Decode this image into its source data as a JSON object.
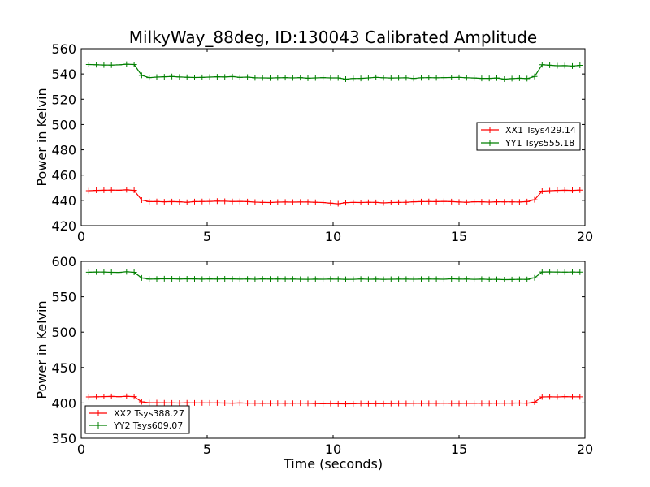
{
  "title": "MilkyWay_88deg, ID:130043 Calibrated Amplitude",
  "chart_data": [
    {
      "type": "line",
      "ylabel": "Power in Kelvin",
      "xlabel": "",
      "xlim": [
        0,
        20
      ],
      "ylim": [
        420,
        560
      ],
      "xticks": [
        0,
        5,
        10,
        15,
        20
      ],
      "yticks": [
        420,
        440,
        460,
        480,
        500,
        520,
        540,
        560
      ],
      "grid": false,
      "legend_position": "center-right",
      "x": [
        0.3,
        0.6,
        0.9,
        1.2,
        1.5,
        1.8,
        2.1,
        2.4,
        2.7,
        3.0,
        3.3,
        3.6,
        3.9,
        4.2,
        4.5,
        4.8,
        5.1,
        5.4,
        5.7,
        6.0,
        6.3,
        6.6,
        6.9,
        7.2,
        7.5,
        7.8,
        8.1,
        8.4,
        8.7,
        9.0,
        9.3,
        9.6,
        9.9,
        10.2,
        10.5,
        10.8,
        11.1,
        11.4,
        11.7,
        12.0,
        12.3,
        12.6,
        12.9,
        13.2,
        13.5,
        13.8,
        14.1,
        14.4,
        14.7,
        15.0,
        15.3,
        15.6,
        15.9,
        16.2,
        16.5,
        16.8,
        17.1,
        17.4,
        17.7,
        18.0,
        18.3,
        18.6,
        18.9,
        19.2,
        19.5,
        19.8
      ],
      "series": [
        {
          "name": "XX1 Tsys429.14",
          "color": "#ff0000",
          "values": [
            447.6,
            447.9,
            448.0,
            448.1,
            448.0,
            448.3,
            447.9,
            440.2,
            439.0,
            439.1,
            438.9,
            439.0,
            438.9,
            438.5,
            439.0,
            439.1,
            439.2,
            439.4,
            439.3,
            439.1,
            439.2,
            439.0,
            438.6,
            438.4,
            438.3,
            438.6,
            438.7,
            438.6,
            438.7,
            438.7,
            438.5,
            438.3,
            437.8,
            437.3,
            438.2,
            438.4,
            438.3,
            438.5,
            438.4,
            438.0,
            438.3,
            438.4,
            438.5,
            438.9,
            439.0,
            439.1,
            439.0,
            439.2,
            439.0,
            438.7,
            438.5,
            438.9,
            438.9,
            438.6,
            438.9,
            438.8,
            438.8,
            438.7,
            439.0,
            440.5,
            447.3,
            447.6,
            447.9,
            448.0,
            447.9,
            448.1
          ]
        },
        {
          "name": "YY1 Tsys555.18",
          "color": "#007f00",
          "values": [
            547.5,
            547.3,
            547.1,
            547.0,
            547.2,
            547.7,
            547.5,
            538.9,
            537.1,
            537.5,
            537.8,
            538.0,
            537.6,
            537.4,
            537.2,
            537.3,
            537.5,
            537.8,
            537.6,
            537.9,
            537.3,
            537.5,
            537.0,
            536.9,
            536.8,
            537.0,
            537.1,
            536.9,
            537.1,
            536.6,
            536.9,
            537.1,
            536.9,
            536.9,
            535.9,
            536.4,
            536.5,
            536.9,
            537.3,
            537.0,
            536.8,
            536.9,
            537.0,
            536.4,
            537.0,
            537.1,
            537.0,
            537.1,
            537.2,
            537.3,
            537.0,
            536.8,
            536.5,
            536.5,
            536.8,
            535.9,
            536.3,
            536.6,
            536.3,
            538.0,
            547.3,
            546.9,
            546.5,
            546.6,
            546.3,
            546.8
          ]
        }
      ]
    },
    {
      "type": "line",
      "ylabel": "Power in Kelvin",
      "xlabel": "Time (seconds)",
      "xlim": [
        0,
        20
      ],
      "ylim": [
        350,
        600
      ],
      "xticks": [
        0,
        5,
        10,
        15,
        20
      ],
      "yticks": [
        350,
        400,
        450,
        500,
        550,
        600
      ],
      "grid": false,
      "legend_position": "lower-left",
      "x": [
        0.3,
        0.6,
        0.9,
        1.2,
        1.5,
        1.8,
        2.1,
        2.4,
        2.7,
        3.0,
        3.3,
        3.6,
        3.9,
        4.2,
        4.5,
        4.8,
        5.1,
        5.4,
        5.7,
        6.0,
        6.3,
        6.6,
        6.9,
        7.2,
        7.5,
        7.8,
        8.1,
        8.4,
        8.7,
        9.0,
        9.3,
        9.6,
        9.9,
        10.2,
        10.5,
        10.8,
        11.1,
        11.4,
        11.7,
        12.0,
        12.3,
        12.6,
        12.9,
        13.2,
        13.5,
        13.8,
        14.1,
        14.4,
        14.7,
        15.0,
        15.3,
        15.6,
        15.9,
        16.2,
        16.5,
        16.8,
        17.1,
        17.4,
        17.7,
        18.0,
        18.3,
        18.6,
        18.9,
        19.2,
        19.5,
        19.8
      ],
      "series": [
        {
          "name": "XX2 Tsys388.27",
          "color": "#ff0000",
          "values": [
            408.5,
            408.7,
            409.0,
            409.2,
            408.8,
            409.3,
            408.9,
            401.6,
            400.3,
            400.4,
            400.2,
            400.1,
            399.9,
            400.2,
            400.1,
            400.0,
            400.1,
            400.0,
            399.9,
            399.8,
            400.0,
            399.7,
            399.8,
            399.4,
            399.6,
            399.7,
            399.5,
            399.6,
            399.7,
            399.5,
            399.2,
            398.9,
            399.1,
            398.9,
            398.7,
            398.9,
            399.3,
            399.0,
            399.2,
            399.0,
            399.1,
            399.3,
            399.3,
            399.4,
            399.5,
            399.5,
            399.4,
            399.7,
            399.4,
            399.3,
            399.5,
            399.4,
            399.6,
            399.5,
            399.7,
            399.8,
            399.8,
            399.9,
            399.7,
            401.2,
            408.5,
            408.7,
            408.5,
            408.9,
            408.7,
            408.6
          ]
        },
        {
          "name": "YY2 Tsys609.07",
          "color": "#007f00",
          "values": [
            584.6,
            585.0,
            584.9,
            584.5,
            584.4,
            585.3,
            584.5,
            576.6,
            574.9,
            575.1,
            575.5,
            575.3,
            575.0,
            575.3,
            575.2,
            574.9,
            575.2,
            575.0,
            575.4,
            575.2,
            574.9,
            575.1,
            574.8,
            575.2,
            575.0,
            575.1,
            574.9,
            575.0,
            574.8,
            574.7,
            574.9,
            574.8,
            575.0,
            574.9,
            574.6,
            574.7,
            575.1,
            574.8,
            574.9,
            574.6,
            574.8,
            574.9,
            574.9,
            574.8,
            574.9,
            575.0,
            574.9,
            574.8,
            575.3,
            574.9,
            575.0,
            574.7,
            574.9,
            574.5,
            574.6,
            574.2,
            574.3,
            574.6,
            574.5,
            576.8,
            585.0,
            585.1,
            584.9,
            584.8,
            584.9,
            584.8
          ]
        }
      ]
    }
  ]
}
